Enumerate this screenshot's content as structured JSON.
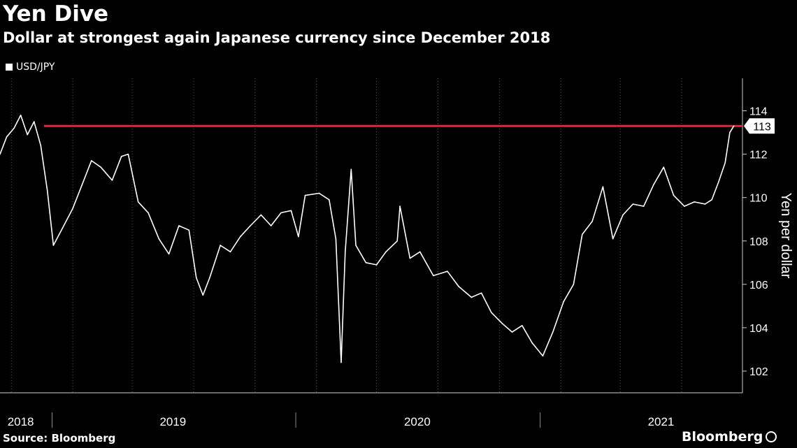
{
  "header": {
    "title": "Yen Dive",
    "subtitle": "Dollar at strongest again Japanese currency since December 2018"
  },
  "legend": {
    "label": "USD/JPY"
  },
  "footer": {
    "source": "Source: Bloomberg",
    "brand": "Bloomberg"
  },
  "colors": {
    "background": "#000000",
    "line": "#ffffff",
    "reference": "#e8233a"
  },
  "chart_data": {
    "type": "line",
    "title": "Yen Dive",
    "subtitle": "Dollar at strongest again Japanese currency since December 2018",
    "ylabel": "Yen per dollar",
    "xlabel": "",
    "ylim": [
      101.0,
      115.5
    ],
    "xlim": [
      "2018-10-15",
      "2021-10-31"
    ],
    "y_ticks": [
      102,
      104,
      106,
      108,
      110,
      112,
      114
    ],
    "x_labels": [
      "2018",
      "2019",
      "2020",
      "2021"
    ],
    "x_label_positions": [
      "2018-11-15",
      "2019-07-01",
      "2020-07-01",
      "2021-07-01"
    ],
    "year_separators": [
      "2019-01-01",
      "2020-01-01",
      "2021-01-01"
    ],
    "grid": "vertical dotted",
    "legend_position": "top-left",
    "reference_line": {
      "y": 113.3,
      "label": "113"
    },
    "series": [
      {
        "name": "USD/JPY",
        "x": [
          "2018-10-15",
          "2018-10-25",
          "2018-11-05",
          "2018-11-15",
          "2018-11-25",
          "2018-12-05",
          "2018-12-15",
          "2018-12-25",
          "2019-01-03",
          "2019-01-15",
          "2019-02-01",
          "2019-02-15",
          "2019-03-01",
          "2019-03-15",
          "2019-04-01",
          "2019-04-15",
          "2019-04-25",
          "2019-05-10",
          "2019-05-25",
          "2019-06-10",
          "2019-06-25",
          "2019-07-10",
          "2019-07-25",
          "2019-08-05",
          "2019-08-15",
          "2019-08-25",
          "2019-09-10",
          "2019-09-25",
          "2019-10-10",
          "2019-10-25",
          "2019-11-10",
          "2019-11-25",
          "2019-12-10",
          "2019-12-25",
          "2020-01-05",
          "2020-01-15",
          "2020-02-05",
          "2020-02-20",
          "2020-03-01",
          "2020-03-09",
          "2020-03-15",
          "2020-03-24",
          "2020-03-31",
          "2020-04-15",
          "2020-05-01",
          "2020-05-15",
          "2020-06-01",
          "2020-06-05",
          "2020-06-20",
          "2020-07-05",
          "2020-07-25",
          "2020-08-15",
          "2020-09-01",
          "2020-09-20",
          "2020-10-05",
          "2020-10-20",
          "2020-11-05",
          "2020-11-20",
          "2020-12-05",
          "2020-12-20",
          "2021-01-05",
          "2021-01-20",
          "2021-02-05",
          "2021-02-20",
          "2021-03-05",
          "2021-03-20",
          "2021-04-05",
          "2021-04-20",
          "2021-05-05",
          "2021-05-20",
          "2021-06-05",
          "2021-06-20",
          "2021-07-05",
          "2021-07-20",
          "2021-08-05",
          "2021-08-20",
          "2021-09-05",
          "2021-09-15",
          "2021-09-25",
          "2021-10-05",
          "2021-10-12",
          "2021-10-18"
        ],
        "values": [
          112.0,
          112.8,
          113.2,
          113.8,
          112.9,
          113.5,
          112.4,
          110.3,
          107.8,
          108.5,
          109.5,
          110.6,
          111.7,
          111.4,
          110.8,
          111.9,
          112.0,
          109.8,
          109.3,
          108.1,
          107.4,
          108.7,
          108.5,
          106.3,
          105.5,
          106.3,
          107.8,
          107.5,
          108.2,
          108.7,
          109.2,
          108.7,
          109.3,
          109.4,
          108.2,
          110.1,
          110.2,
          109.9,
          108.1,
          102.4,
          107.5,
          111.3,
          107.8,
          107.0,
          106.9,
          107.5,
          108.0,
          109.6,
          107.2,
          107.5,
          106.4,
          106.6,
          105.9,
          105.4,
          105.6,
          104.7,
          104.2,
          103.8,
          104.1,
          103.3,
          102.7,
          103.8,
          105.2,
          106.0,
          108.3,
          108.9,
          110.5,
          108.1,
          109.2,
          109.7,
          109.6,
          110.6,
          111.4,
          110.1,
          109.6,
          109.8,
          109.7,
          109.9,
          110.7,
          111.6,
          113.0,
          113.3
        ]
      }
    ]
  }
}
